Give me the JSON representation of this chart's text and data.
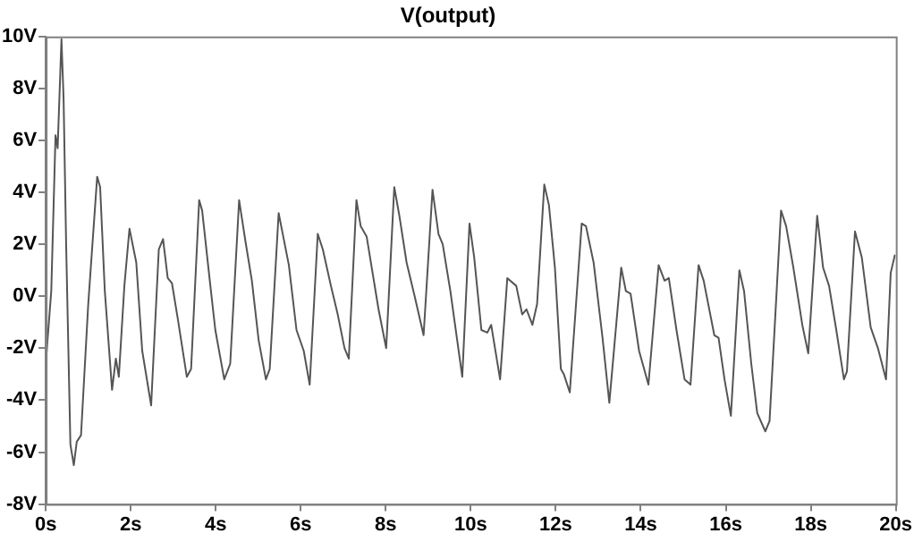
{
  "chart_data": {
    "type": "line",
    "title": "V(output)",
    "xlim": [
      0,
      20
    ],
    "ylim": [
      -8,
      10
    ],
    "xticks": [
      {
        "value": 0,
        "label": "0s"
      },
      {
        "value": 2,
        "label": "2s"
      },
      {
        "value": 4,
        "label": "4s"
      },
      {
        "value": 6,
        "label": "6s"
      },
      {
        "value": 8,
        "label": "8s"
      },
      {
        "value": 10,
        "label": "10s"
      },
      {
        "value": 12,
        "label": "12s"
      },
      {
        "value": 14,
        "label": "14s"
      },
      {
        "value": 16,
        "label": "16s"
      },
      {
        "value": 18,
        "label": "18s"
      },
      {
        "value": 20,
        "label": "20s"
      }
    ],
    "yticks": [
      {
        "value": -8,
        "label": "-8V"
      },
      {
        "value": -6,
        "label": "-6V"
      },
      {
        "value": -4,
        "label": "-4V"
      },
      {
        "value": -2,
        "label": "-2V"
      },
      {
        "value": 0,
        "label": "0V"
      },
      {
        "value": 2,
        "label": "2V"
      },
      {
        "value": 4,
        "label": "4V"
      },
      {
        "value": 6,
        "label": "6V"
      },
      {
        "value": 8,
        "label": "8V"
      },
      {
        "value": 10,
        "label": "10V"
      }
    ],
    "legend": false,
    "marker": "none",
    "line_style": "solid",
    "series": [
      {
        "color": "#555555",
        "x": [
          0,
          0.13,
          0.23,
          0.28,
          0.37,
          0.42,
          0.48,
          0.58,
          0.66,
          0.73,
          0.83,
          1.0,
          1.21,
          1.28,
          1.39,
          1.56,
          1.65,
          1.72,
          1.85,
          1.97,
          2.13,
          2.27,
          2.48,
          2.66,
          2.76,
          2.87,
          2.97,
          3.11,
          3.32,
          3.42,
          3.61,
          3.68,
          3.86,
          3.99,
          4.2,
          4.34,
          4.55,
          4.7,
          4.85,
          5.01,
          5.18,
          5.27,
          5.48,
          5.72,
          5.9,
          6.07,
          6.21,
          6.4,
          6.52,
          6.71,
          6.87,
          7.03,
          7.13,
          7.31,
          7.41,
          7.55,
          7.72,
          7.83,
          8.01,
          8.2,
          8.32,
          8.49,
          8.68,
          8.89,
          9.1,
          9.24,
          9.34,
          9.52,
          9.8,
          9.97,
          10.08,
          10.25,
          10.39,
          10.48,
          10.69,
          10.86,
          11.07,
          11.21,
          11.31,
          11.45,
          11.56,
          11.73,
          11.84,
          11.98,
          12.12,
          12.19,
          12.33,
          12.61,
          12.71,
          12.89,
          13.1,
          13.26,
          13.54,
          13.65,
          13.76,
          13.96,
          14.18,
          14.42,
          14.56,
          14.66,
          14.84,
          15.03,
          15.17,
          15.36,
          15.48,
          15.73,
          15.83,
          15.97,
          16.12,
          16.32,
          16.43,
          16.6,
          16.74,
          16.93,
          17.03,
          17.16,
          17.3,
          17.42,
          17.59,
          17.8,
          17.94,
          18.15,
          18.29,
          18.43,
          18.6,
          18.78,
          18.85,
          19.04,
          19.2,
          19.41,
          19.58,
          19.77,
          19.88,
          19.98
        ],
        "values": [
          -2.6,
          0.2,
          6.2,
          5.7,
          9.9,
          7.6,
          2.0,
          -5.7,
          -6.5,
          -5.6,
          -5.35,
          -0.3,
          4.6,
          4.2,
          0.2,
          -3.6,
          -2.4,
          -3.1,
          0.4,
          2.6,
          1.3,
          -2.1,
          -4.2,
          1.8,
          2.2,
          0.7,
          0.5,
          -0.9,
          -3.1,
          -2.8,
          3.7,
          3.3,
          0.6,
          -1.3,
          -3.2,
          -2.6,
          3.7,
          2.1,
          0.6,
          -1.7,
          -3.2,
          -2.8,
          3.2,
          1.2,
          -1.3,
          -2.1,
          -3.4,
          2.4,
          1.8,
          0.4,
          -0.7,
          -2.0,
          -2.4,
          3.7,
          2.7,
          2.3,
          0.6,
          -0.5,
          -2.0,
          4.2,
          3.1,
          1.3,
          0.0,
          -1.5,
          4.1,
          2.4,
          2.0,
          0.2,
          -3.1,
          2.8,
          1.5,
          -1.3,
          -1.4,
          -1.1,
          -3.2,
          0.7,
          0.4,
          -0.7,
          -0.5,
          -1.1,
          -0.3,
          4.3,
          3.5,
          1.1,
          -2.8,
          -3.0,
          -3.7,
          2.8,
          2.7,
          1.3,
          -1.6,
          -4.1,
          1.1,
          0.2,
          0.1,
          -2.1,
          -3.4,
          1.2,
          0.6,
          0.7,
          -1.3,
          -3.2,
          -3.4,
          1.2,
          0.6,
          -1.5,
          -1.6,
          -3.2,
          -4.6,
          1.0,
          0.2,
          -2.6,
          -4.5,
          -5.2,
          -4.8,
          -0.9,
          3.3,
          2.7,
          1.1,
          -1.1,
          -2.2,
          3.1,
          1.1,
          0.4,
          -1.3,
          -3.2,
          -2.9,
          2.5,
          1.5,
          -1.2,
          -2.0,
          -3.2,
          0.9,
          1.6
        ]
      }
    ]
  }
}
